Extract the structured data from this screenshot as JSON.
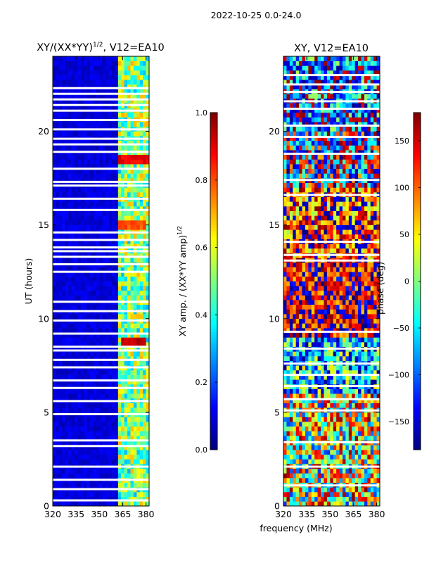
{
  "figure": {
    "suptitle": "2022-10-25 0.0-24.0",
    "xlabel": "frequency (MHz)"
  },
  "chart_data": [
    {
      "type": "heatmap",
      "title_main": "XY/(XX*YY)",
      "title_sup": "1/2",
      "title_tail": ", V12=EA10",
      "xlabel": "",
      "ylabel": "UT (hours)",
      "xlim": [
        320,
        382
      ],
      "ylim": [
        0,
        24
      ],
      "xticks": [
        "320",
        "335",
        "350",
        "365",
        "380"
      ],
      "xtick_values": [
        320,
        335,
        350,
        365,
        380
      ],
      "yticks": [
        "0",
        "5",
        "10",
        "15",
        "20"
      ],
      "ytick_values": [
        0,
        5,
        10,
        15,
        20
      ],
      "colorbar": {
        "label_main": "XY amp. / (XX*YY amp)",
        "label_sup": "1/2",
        "range": [
          0,
          1
        ],
        "ticks": [
          "0.0",
          "0.2",
          "0.4",
          "0.6",
          "0.8",
          "1.0"
        ],
        "tick_values": [
          0,
          0.2,
          0.4,
          0.6,
          0.8,
          1.0
        ]
      },
      "features": {
        "background_value": 0.05,
        "rfi_band_mhz": [
          363,
          381
        ],
        "rfi_band_value_range": [
          0.3,
          0.7
        ],
        "hot_spots": [
          {
            "t": 18.4,
            "f_start": 362,
            "f_end": 381,
            "value": 0.85
          },
          {
            "t": 8.8,
            "f_start": 365,
            "f_end": 380,
            "value": 0.9
          },
          {
            "t": 15.1,
            "f_start": 363,
            "f_end": 380,
            "value": 0.75
          }
        ],
        "flagged_utc_hours": [
          0.3,
          0.9,
          1.4,
          2.1,
          3.2,
          3.5,
          4.9,
          5.6,
          6.3,
          6.7,
          7.4,
          7.8,
          8.3,
          8.5,
          9.2,
          9.9,
          10.4,
          10.9,
          12.5,
          12.9,
          13.3,
          13.6,
          13.8,
          14.2,
          14.6,
          15.8,
          16.4,
          17.1,
          17.3,
          18.0,
          18.9,
          19.3,
          19.6,
          20.1,
          20.6,
          21.1,
          21.4,
          21.7,
          22.0,
          22.3
        ]
      }
    },
    {
      "type": "heatmap",
      "title": "XY, V12=EA10",
      "xlabel": "",
      "ylabel": "",
      "xlim": [
        320,
        382
      ],
      "ylim": [
        0,
        24
      ],
      "xticks": [
        "320",
        "335",
        "350",
        "365",
        "380"
      ],
      "xtick_values": [
        320,
        335,
        350,
        365,
        380
      ],
      "yticks": [
        "0",
        "5",
        "10",
        "15",
        "20"
      ],
      "ytick_values": [
        0,
        5,
        10,
        15,
        20
      ],
      "colorbar": {
        "label": "phase (deg)",
        "range": [
          -180,
          180
        ],
        "ticks": [
          "−150",
          "−100",
          "−50",
          "0",
          "50",
          "100",
          "150"
        ],
        "tick_values": [
          -150,
          -100,
          -50,
          0,
          50,
          100,
          150
        ]
      },
      "features": {
        "phase_regions": [
          {
            "t_start": 0,
            "t_end": 6,
            "dominant_phase": 30,
            "noise": 150
          },
          {
            "t_start": 6,
            "t_end": 9,
            "dominant_phase": -60,
            "noise": 120
          },
          {
            "t_start": 9,
            "t_end": 13,
            "dominant_phase": 150,
            "noise": 90
          },
          {
            "t_start": 13,
            "t_end": 17,
            "dominant_phase": 120,
            "noise": 110
          },
          {
            "t_start": 17,
            "t_end": 20,
            "dominant_phase": -150,
            "noise": 140
          },
          {
            "t_start": 20,
            "t_end": 24,
            "dominant_phase": -100,
            "noise": 120
          }
        ],
        "flagged_utc_hours": [
          1.1,
          2.1,
          3.4,
          5.1,
          5.7,
          6.4,
          7.0,
          7.6,
          8.4,
          9.3,
          13.1,
          13.4,
          14.1,
          16.6,
          17.4,
          18.8,
          19.7,
          20.3,
          21.2,
          21.6,
          22.1,
          22.5,
          23.0
        ]
      }
    }
  ],
  "colors": {
    "axis": "#000000",
    "flag": "#ffffff"
  }
}
